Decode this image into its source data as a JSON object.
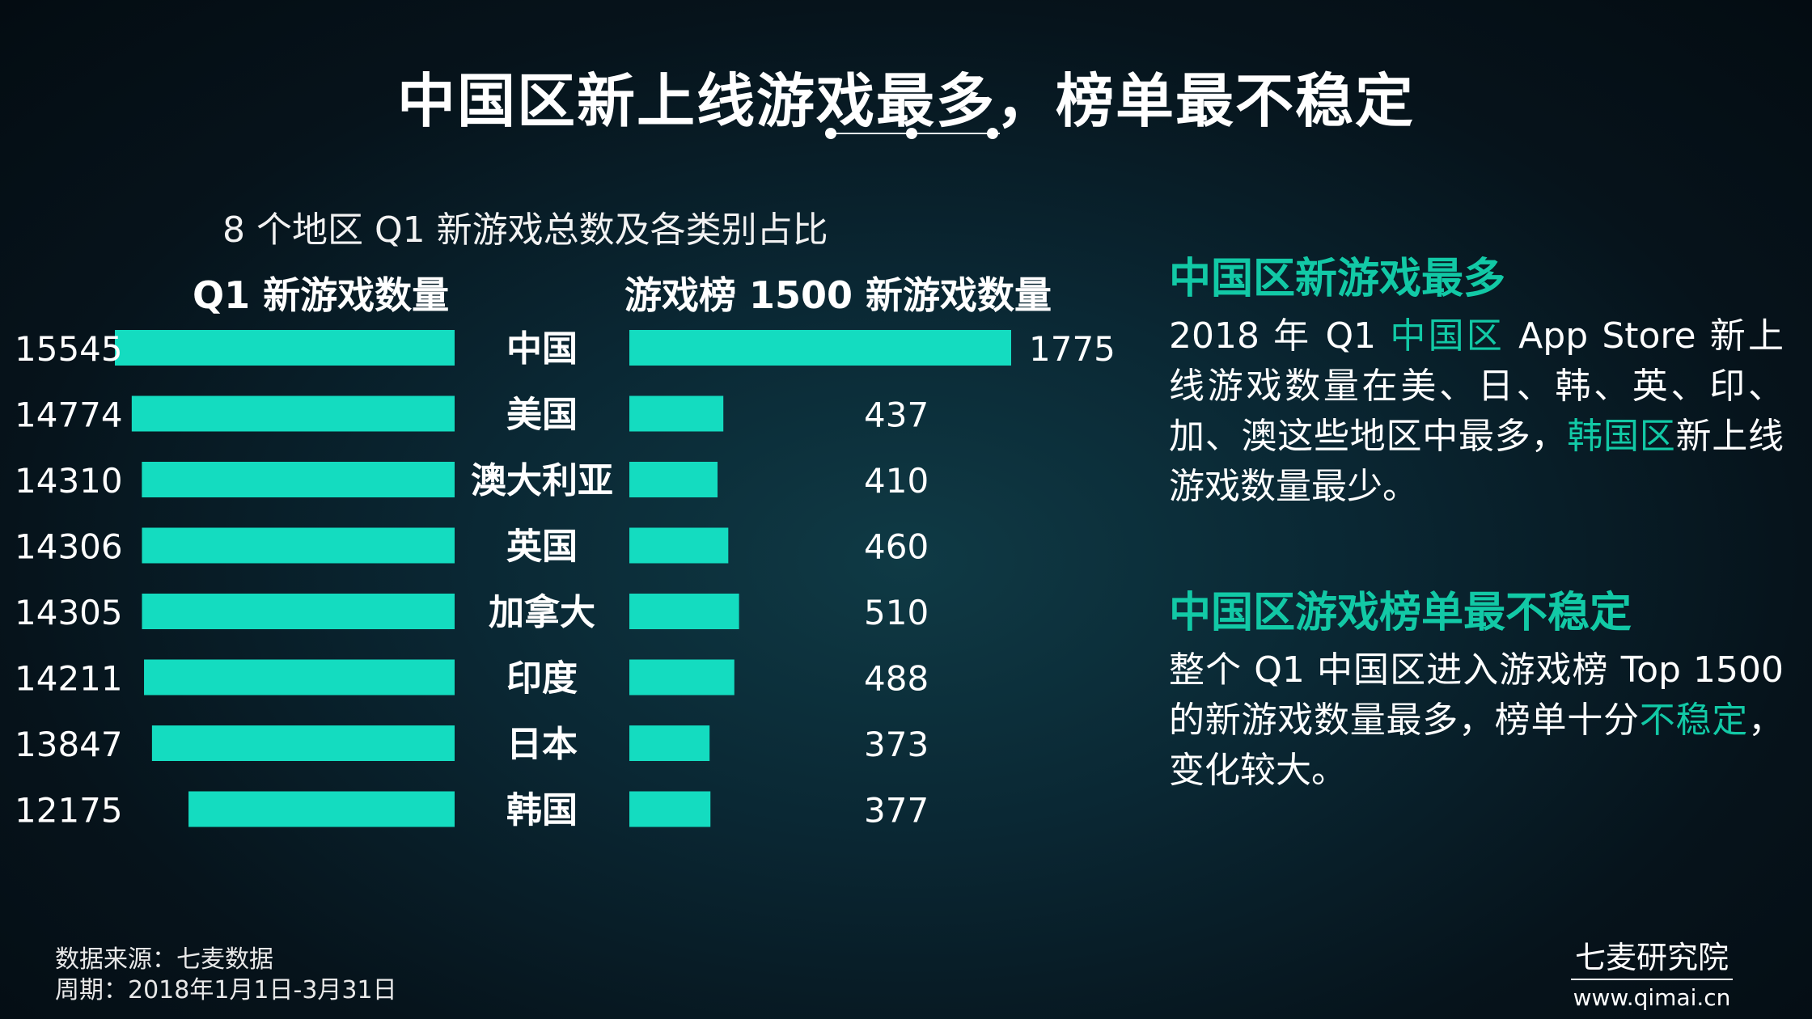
{
  "page_title": "中国区新上线游戏最多，榜单最不稳定",
  "chart_data": {
    "type": "bar",
    "title": "8 个地区 Q1 新游戏总数及各类别占比",
    "categories": [
      "中国",
      "美国",
      "澳大利亚",
      "英国",
      "加拿大",
      "印度",
      "日本",
      "韩国"
    ],
    "series": [
      {
        "name": "Q1 新游戏数量",
        "values": [
          15545,
          14774,
          14310,
          14306,
          14305,
          14211,
          13847,
          12175
        ]
      },
      {
        "name": "游戏榜 1500 新游戏数量",
        "values": [
          1775,
          437,
          410,
          460,
          510,
          488,
          373,
          377
        ]
      }
    ],
    "left_xlim": [
      0,
      15545
    ],
    "right_xlim": [
      0,
      1775
    ],
    "bar_color": "#14dcc0",
    "orientation": "back-to-back horizontal"
  },
  "side": {
    "heading1": "中国区新游戏最多",
    "p1": {
      "a": "2018 年 Q1 ",
      "b": "中国区",
      "c": " App Store 新上线游戏数量在美、日、韩、英、印、加、澳这些地区中最多，",
      "d": "韩国区",
      "e": "新上线游戏数量最少。"
    },
    "heading2": "中国区游戏榜单最不稳定",
    "p2": {
      "a": "整个 Q1 中国区进入游戏榜 Top 1500 的新游戏数量最多，榜单十分",
      "b": "不稳定",
      "c": "，变化较大。"
    }
  },
  "footer": {
    "source": "数据来源：七麦数据",
    "period": "周期：2018年1月1日-3月31日",
    "brand": "七麦研究院",
    "url": "www.qimai.cn"
  },
  "colors": {
    "accent": "#12c9a6",
    "bar": "#14dcc0"
  }
}
